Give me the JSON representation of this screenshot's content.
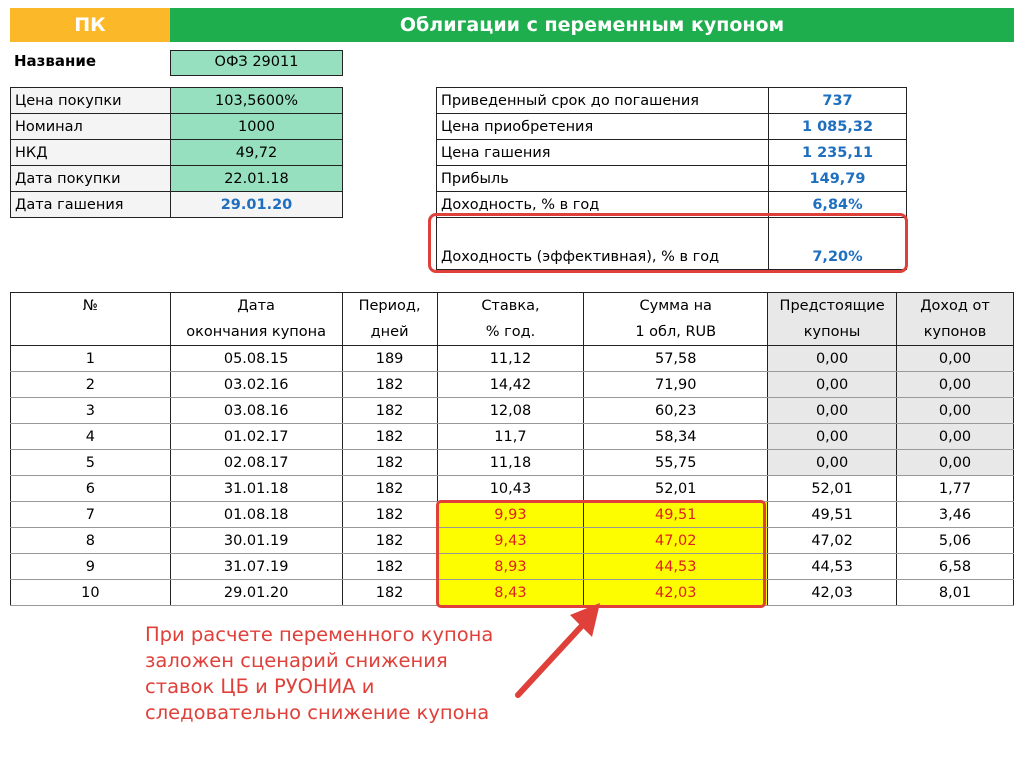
{
  "header": {
    "left": "ПК",
    "title": "Облигации с переменным купоном"
  },
  "name": {
    "label": "Название",
    "value": "ОФЗ 29011"
  },
  "params": [
    {
      "label": "Цена покупки",
      "value": "103,5600%"
    },
    {
      "label": "Номинал",
      "value": "1000"
    },
    {
      "label": "НКД",
      "value": "49,72"
    },
    {
      "label": "Дата покупки",
      "value": "22.01.18"
    },
    {
      "label": "Дата гашения",
      "value": "29.01.20"
    }
  ],
  "results": [
    {
      "label": "Приведенный срок до погашения",
      "value": "737"
    },
    {
      "label": "Цена приобретения",
      "value": "1 085,32"
    },
    {
      "label": "Цена гашения",
      "value": "1 235,11"
    },
    {
      "label": "Прибыль",
      "value": "149,79"
    },
    {
      "label": "Доходность, % в год",
      "value": "6,84%"
    },
    {
      "label": "Доходность (эффективная), % в год",
      "value": "7,20%"
    }
  ],
  "table": {
    "headers": [
      [
        "№",
        ""
      ],
      [
        "Дата",
        "окончания купона"
      ],
      [
        "Период,",
        "дней"
      ],
      [
        "Ставка,",
        "% год."
      ],
      [
        "Сумма на",
        "1 обл, RUB"
      ],
      [
        "Предстоящие",
        "купоны"
      ],
      [
        "Доход от",
        "купонов"
      ]
    ],
    "rows": [
      [
        "1",
        "05.08.15",
        "189",
        "11,12",
        "57,58",
        "0,00",
        "0,00"
      ],
      [
        "2",
        "03.02.16",
        "182",
        "14,42",
        "71,90",
        "0,00",
        "0,00"
      ],
      [
        "3",
        "03.08.16",
        "182",
        "12,08",
        "60,23",
        "0,00",
        "0,00"
      ],
      [
        "4",
        "01.02.17",
        "182",
        "11,7",
        "58,34",
        "0,00",
        "0,00"
      ],
      [
        "5",
        "02.08.17",
        "182",
        "11,18",
        "55,75",
        "0,00",
        "0,00"
      ],
      [
        "6",
        "31.01.18",
        "182",
        "10,43",
        "52,01",
        "52,01",
        "1,77"
      ],
      [
        "7",
        "01.08.18",
        "182",
        "9,93",
        "49,51",
        "49,51",
        "3,46"
      ],
      [
        "8",
        "30.01.19",
        "182",
        "9,43",
        "47,02",
        "47,02",
        "5,06"
      ],
      [
        "9",
        "31.07.19",
        "182",
        "8,93",
        "44,53",
        "44,53",
        "6,58"
      ],
      [
        "10",
        "29.01.20",
        "182",
        "8,43",
        "42,03",
        "42,03",
        "8,01"
      ]
    ]
  },
  "annotation": "При расчете переменного купона заложен сценарий снижения ставок ЦБ и РУОНИА и следовательно снижение купона",
  "colors": {
    "orange": "#fbb829",
    "green": "#1fae4e",
    "accent_red": "#e0403a",
    "blue": "#1f6fbf",
    "yellow": "#fdfd00"
  }
}
